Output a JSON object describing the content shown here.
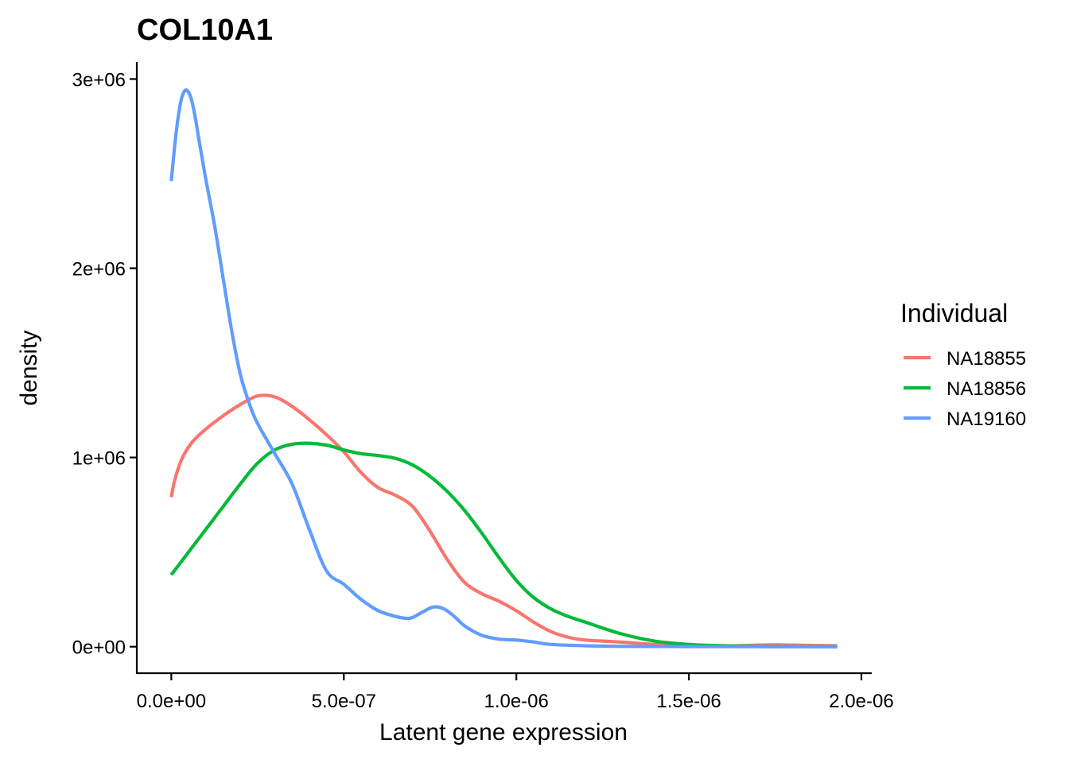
{
  "chart_data": {
    "type": "line",
    "title": "COL10A1",
    "xlabel": "Latent gene expression",
    "ylabel": "density",
    "xlim": [
      -1e-07,
      2.03e-06
    ],
    "ylim": [
      -140000,
      3090000
    ],
    "x_ticks": [
      {
        "value": 0,
        "label": "0.0e+00"
      },
      {
        "value": 5e-07,
        "label": "5.0e-07"
      },
      {
        "value": 1e-06,
        "label": "1.0e-06"
      },
      {
        "value": 1.5e-06,
        "label": "1.5e-06"
      },
      {
        "value": 2e-06,
        "label": "2.0e-06"
      }
    ],
    "y_ticks": [
      {
        "value": 0,
        "label": "0e+00"
      },
      {
        "value": 1000000,
        "label": "1e+06"
      },
      {
        "value": 2000000,
        "label": "2e+06"
      },
      {
        "value": 3000000,
        "label": "3e+06"
      }
    ],
    "grid": false,
    "legend": {
      "title": "Individual",
      "position": "right"
    },
    "series": [
      {
        "name": "NA18855",
        "color": "#F8766D",
        "x": [
          0,
          1e-08,
          3e-08,
          6e-08,
          1e-07,
          1.5e-07,
          2e-07,
          2.5e-07,
          3e-07,
          3.5e-07,
          4e-07,
          4.5e-07,
          5e-07,
          5.5e-07,
          6e-07,
          6.5e-07,
          7e-07,
          7.5e-07,
          8e-07,
          8.5e-07,
          9e-07,
          9.5e-07,
          1e-06,
          1.05e-06,
          1.1e-06,
          1.15e-06,
          1.2e-06,
          1.3e-06,
          1.4e-06,
          1.5e-06,
          1.6e-06,
          1.7e-06,
          1.75e-06,
          1.8e-06,
          1.93e-06
        ],
        "y": [
          790000,
          880000,
          990000,
          1080000,
          1150000,
          1220000,
          1280000,
          1325000,
          1320000,
          1270000,
          1200000,
          1120000,
          1030000,
          920000,
          840000,
          800000,
          740000,
          610000,
          460000,
          340000,
          280000,
          240000,
          190000,
          130000,
          80000,
          50000,
          35000,
          25000,
          12000,
          8000,
          4000,
          8000,
          10000,
          8000,
          5000
        ]
      },
      {
        "name": "NA18856",
        "color": "#00BA38",
        "x": [
          0,
          5e-08,
          1e-07,
          1.5e-07,
          2e-07,
          2.5e-07,
          3e-07,
          3.5e-07,
          4e-07,
          4.5e-07,
          5e-07,
          5.5e-07,
          6e-07,
          6.5e-07,
          7e-07,
          7.5e-07,
          8e-07,
          8.5e-07,
          9e-07,
          9.5e-07,
          1e-06,
          1.05e-06,
          1.1e-06,
          1.15e-06,
          1.2e-06,
          1.3e-06,
          1.4e-06,
          1.5e-06,
          1.6e-06,
          1.7e-06,
          1.8e-06,
          1.93e-06
        ],
        "y": [
          380000,
          500000,
          620000,
          740000,
          860000,
          970000,
          1040000,
          1070000,
          1075000,
          1065000,
          1040000,
          1020000,
          1010000,
          995000,
          960000,
          900000,
          820000,
          720000,
          600000,
          470000,
          350000,
          260000,
          200000,
          160000,
          130000,
          70000,
          30000,
          12000,
          5000,
          2000,
          1000,
          500
        ]
      },
      {
        "name": "NA19160",
        "color": "#619CFF",
        "x": [
          0,
          1e-08,
          2e-08,
          3e-08,
          4e-08,
          5e-08,
          6e-08,
          7e-08,
          8e-08,
          1e-07,
          1.25e-07,
          1.5e-07,
          1.75e-07,
          2e-07,
          2.25e-07,
          2.5e-07,
          3e-07,
          3.5e-07,
          4e-07,
          4.5e-07,
          5e-07,
          5.5e-07,
          6e-07,
          6.5e-07,
          6.8e-07,
          7e-07,
          7.3e-07,
          7.6e-07,
          7.9e-07,
          8.2e-07,
          8.5e-07,
          9e-07,
          9.5e-07,
          1e-06,
          1.05e-06,
          1.1e-06,
          1.2e-06,
          1.3e-06,
          1.4e-06,
          1.6e-06,
          1.93e-06
        ],
        "y": [
          2460000,
          2650000,
          2800000,
          2900000,
          2940000,
          2930000,
          2880000,
          2790000,
          2680000,
          2470000,
          2230000,
          1950000,
          1670000,
          1440000,
          1290000,
          1180000,
          1020000,
          860000,
          620000,
          400000,
          330000,
          250000,
          190000,
          160000,
          150000,
          155000,
          185000,
          210000,
          200000,
          160000,
          110000,
          60000,
          40000,
          35000,
          25000,
          12000,
          5000,
          2000,
          1000,
          500,
          0
        ]
      }
    ]
  }
}
